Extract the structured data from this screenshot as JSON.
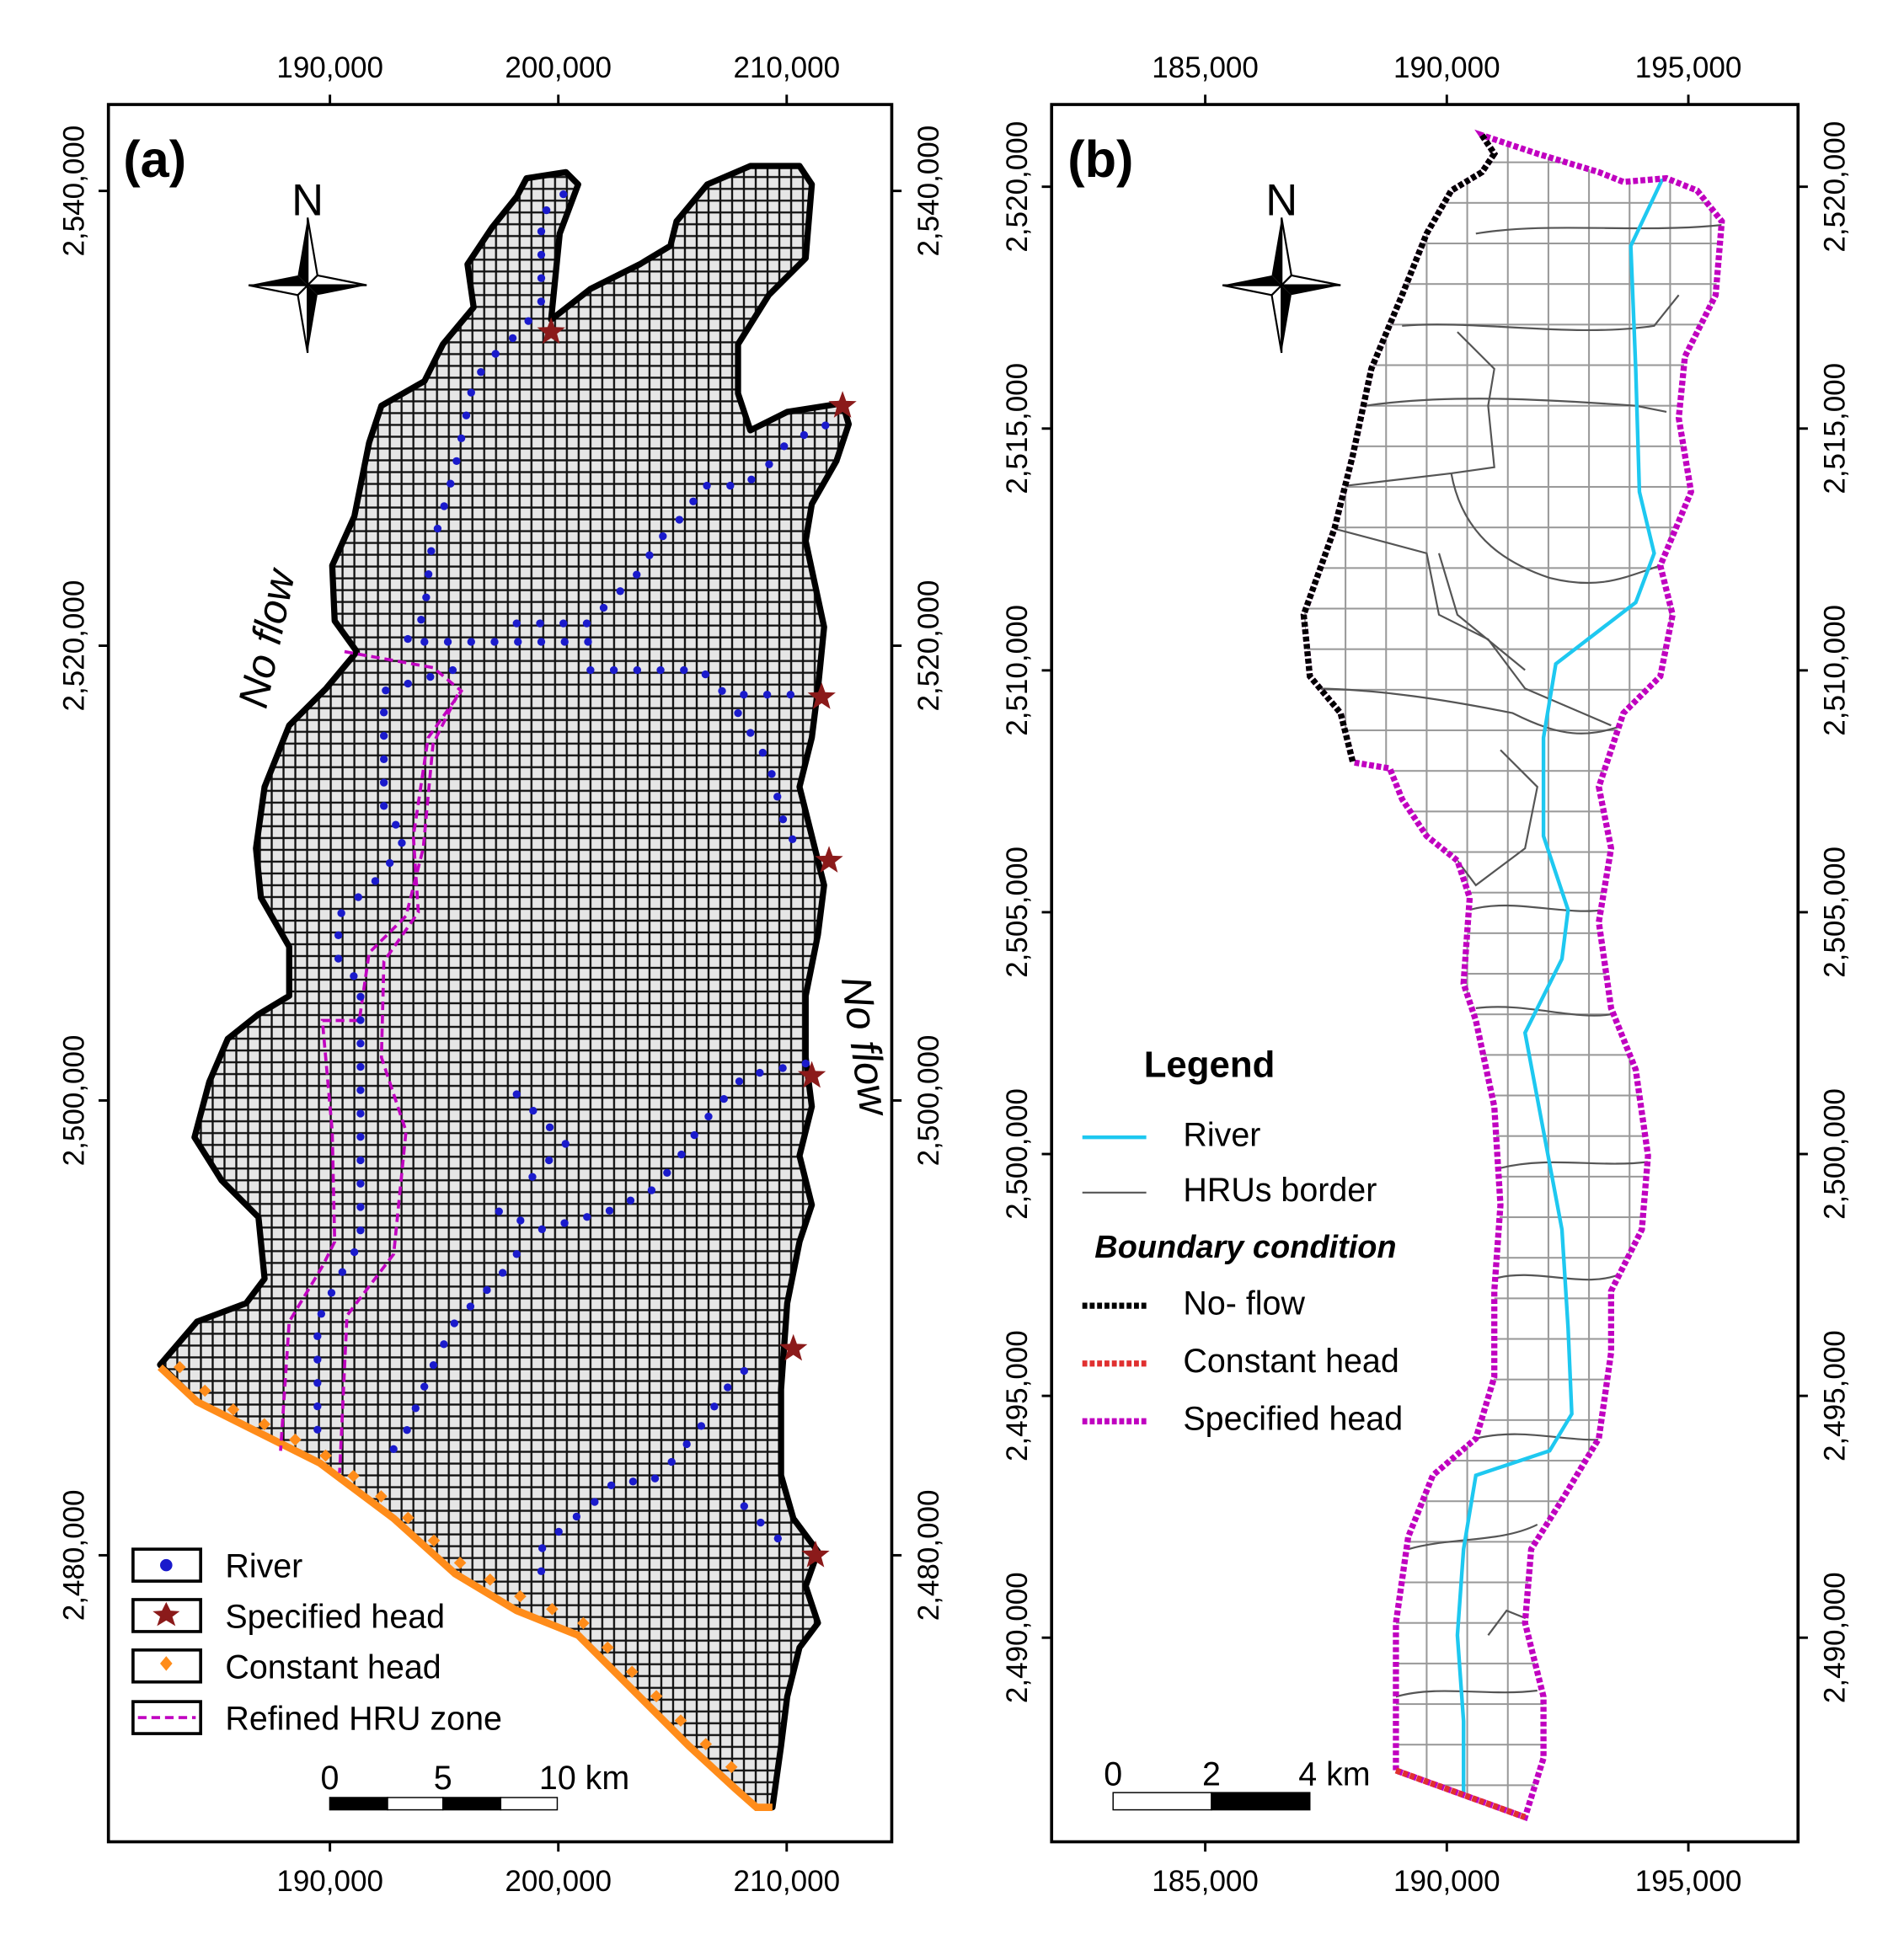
{
  "panels": [
    {
      "label": "(a)",
      "north": "N",
      "annotations": [
        "No flow",
        "No flow"
      ],
      "xlim": [
        180300,
        214600
      ],
      "ylim": [
        2467400,
        2543800
      ],
      "xticks": [
        {
          "value": 190000,
          "label": "190,000"
        },
        {
          "value": 200000,
          "label": "200,000"
        },
        {
          "value": 210000,
          "label": "210,000"
        }
      ],
      "yticks": [
        {
          "value": 2480000,
          "label": "2,480,000"
        },
        {
          "value": 2500000,
          "label": "2,500,000"
        },
        {
          "value": 2520000,
          "label": "2,520,000"
        },
        {
          "value": 2540000,
          "label": "2,540,000"
        }
      ],
      "legend": [
        "River",
        "Specified head",
        "Constant head",
        "Refined HRU zone"
      ],
      "scale_bar": [
        "0",
        "5",
        "10 km"
      ]
    },
    {
      "label": "(b)",
      "north": "N",
      "xlim": [
        181820,
        197270
      ],
      "ylim": [
        2485780,
        2521700
      ],
      "xticks": [
        {
          "value": 185000,
          "label": "185,000"
        },
        {
          "value": 190000,
          "label": "190,000"
        },
        {
          "value": 195000,
          "label": "195,000"
        }
      ],
      "yticks": [
        {
          "value": 2490000,
          "label": "2,490,000"
        },
        {
          "value": 2495000,
          "label": "2,495,000"
        },
        {
          "value": 2500000,
          "label": "2,500,000"
        },
        {
          "value": 2505000,
          "label": "2,505,000"
        },
        {
          "value": 2510000,
          "label": "2,510,000"
        },
        {
          "value": 2515000,
          "label": "2,515,000"
        },
        {
          "value": 2520000,
          "label": "2,520,000"
        }
      ],
      "legend_title": "Legend",
      "legend": [
        "River",
        "HRUs border"
      ],
      "legend_subtitle": "Boundary condition",
      "boundary_legend": [
        "No- flow",
        "Constant head",
        "Specified head"
      ],
      "scale_bar": [
        "0",
        "2",
        "4 km"
      ]
    }
  ]
}
